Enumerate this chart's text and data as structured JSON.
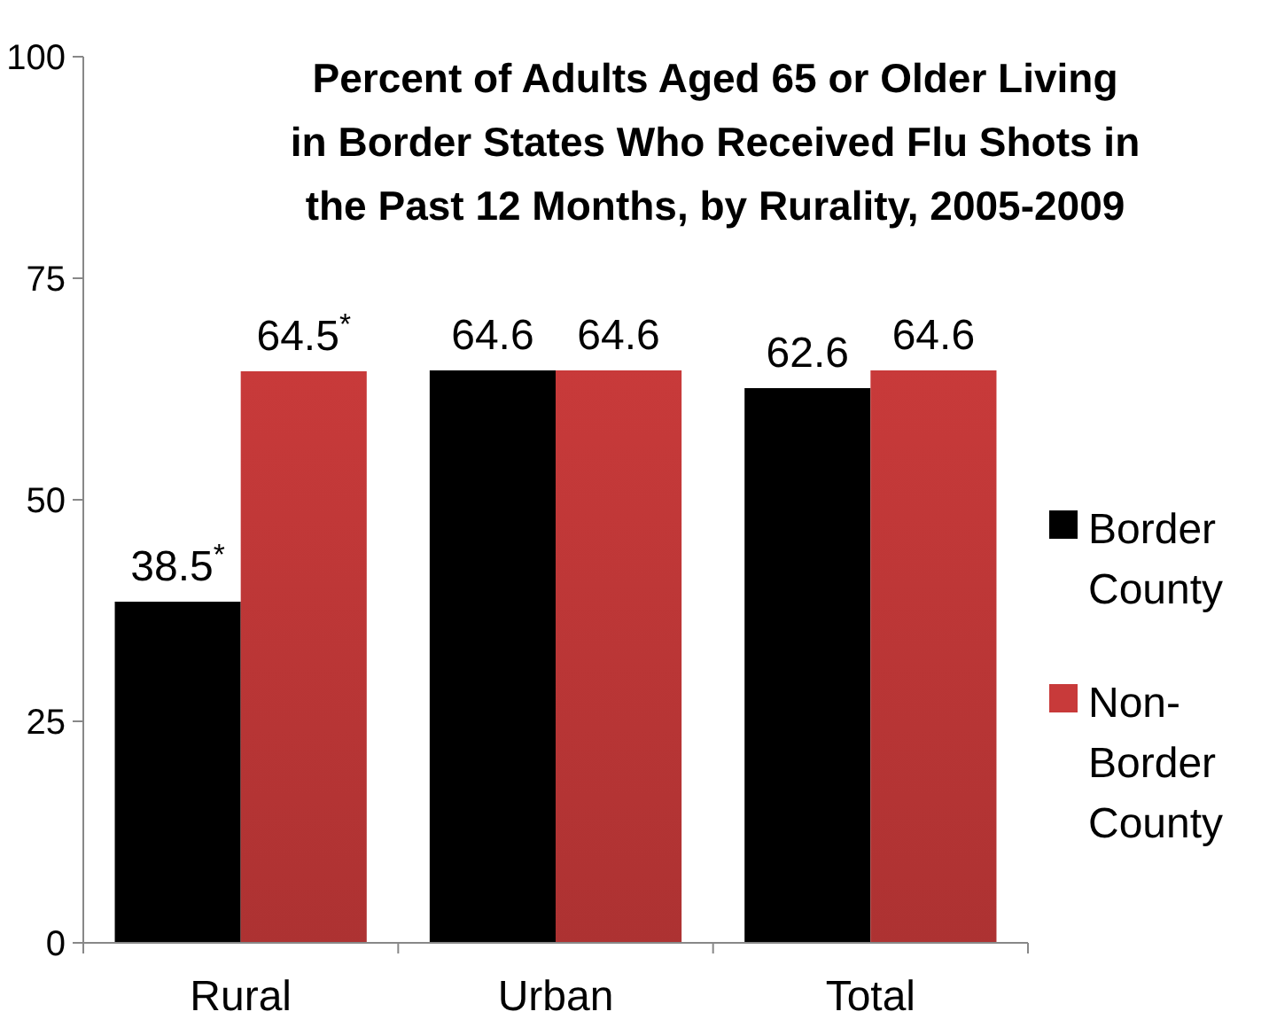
{
  "chart_data": {
    "type": "bar",
    "title": "Percent of Adults Aged 65 or Older Living in Border States Who Received Flu Shots in the Past 12 Months, by Rurality, 2005-2009",
    "categories": [
      "Rural",
      "Urban",
      "Total"
    ],
    "series": [
      {
        "name": "Border County",
        "color": "#000000",
        "values": [
          38.5,
          64.6,
          62.6
        ],
        "value_labels": [
          "38.5$^{*}$",
          "64.6",
          "62.6"
        ]
      },
      {
        "name": "Non-Border County",
        "color": "#c83a3a",
        "values": [
          64.5,
          64.6,
          64.6
        ],
        "value_labels": [
          "64.5$^{*}$",
          "64.6",
          "64.6"
        ]
      }
    ],
    "ylim": [
      0,
      100
    ],
    "yticks": [
      0,
      25,
      50,
      75,
      100
    ],
    "grid": false,
    "legend": "right"
  }
}
